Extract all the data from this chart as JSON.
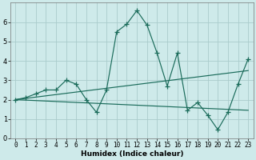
{
  "xlabel": "Humidex (Indice chaleur)",
  "bg_color": "#ceeaea",
  "grid_color": "#aacccc",
  "line_color": "#1a6b5a",
  "xlim": [
    -0.5,
    23.5
  ],
  "ylim": [
    0,
    7
  ],
  "xticks": [
    0,
    1,
    2,
    3,
    4,
    5,
    6,
    7,
    8,
    9,
    10,
    11,
    12,
    13,
    14,
    15,
    16,
    17,
    18,
    19,
    20,
    21,
    22,
    23
  ],
  "yticks": [
    0,
    1,
    2,
    3,
    4,
    5,
    6
  ],
  "series": [
    {
      "x": [
        0,
        1,
        2,
        3,
        4,
        5,
        6,
        7,
        8,
        9,
        10,
        11,
        12,
        13,
        14,
        15,
        16,
        17,
        18,
        19,
        20,
        21,
        22,
        23
      ],
      "y": [
        2.0,
        2.1,
        2.3,
        2.5,
        2.5,
        3.0,
        2.8,
        2.0,
        1.35,
        2.5,
        5.5,
        5.9,
        6.6,
        5.85,
        4.4,
        2.7,
        4.4,
        1.45,
        1.85,
        1.2,
        0.45,
        1.35,
        2.8,
        4.1
      ],
      "marker": true
    },
    {
      "x": [
        0,
        23
      ],
      "y": [
        2.0,
        3.5
      ],
      "marker": false
    },
    {
      "x": [
        0,
        23
      ],
      "y": [
        2.0,
        1.45
      ],
      "marker": false
    }
  ],
  "tick_fontsize": 5.5,
  "xlabel_fontsize": 6.5,
  "lw": 0.85,
  "marker_size": 4,
  "marker_lw": 0.9
}
